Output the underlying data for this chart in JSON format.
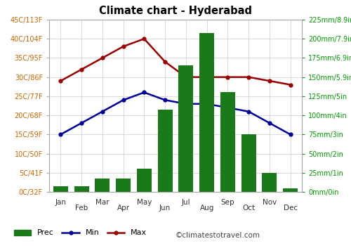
{
  "title": "Climate chart - Hyderabad",
  "months": [
    "Jan",
    "Feb",
    "Mar",
    "Apr",
    "May",
    "Jun",
    "Jul",
    "Aug",
    "Sep",
    "Oct",
    "Nov",
    "Dec"
  ],
  "prec_mm": [
    7,
    7,
    17,
    17,
    30,
    107,
    165,
    208,
    130,
    75,
    25,
    5
  ],
  "temp_min": [
    15,
    18,
    21,
    24,
    26,
    24,
    23,
    23,
    22,
    21,
    18,
    15
  ],
  "temp_max": [
    29,
    32,
    35,
    38,
    40,
    34,
    30,
    30,
    30,
    30,
    29,
    28
  ],
  "temp_ylim": [
    0,
    45
  ],
  "prec_ylim": [
    0,
    225
  ],
  "temp_yticks": [
    0,
    5,
    10,
    15,
    20,
    25,
    30,
    35,
    40,
    45
  ],
  "temp_ytick_labels": [
    "0C/32F",
    "5C/41F",
    "10C/50F",
    "15C/59F",
    "20C/68F",
    "25C/77F",
    "30C/86F",
    "35C/95F",
    "40C/104F",
    "45C/113F"
  ],
  "prec_yticks": [
    0,
    25,
    50,
    75,
    100,
    125,
    150,
    175,
    200,
    225
  ],
  "prec_ytick_labels": [
    "0mm/0in",
    "25mm/1in",
    "50mm/2in",
    "75mm/3in",
    "100mm/4in",
    "125mm/5in",
    "150mm/5.9in",
    "175mm/6.9in",
    "200mm/7.9in",
    "225mm/8.9in"
  ],
  "bar_color": "#1a7a1a",
  "min_color": "#000099",
  "max_color": "#990000",
  "grid_color": "#cccccc",
  "right_axis_color": "#009900",
  "title_color": "#000000",
  "watermark": "©climatestotravel.com",
  "watermark_color": "#444444",
  "background_color": "#ffffff",
  "left_tick_color": "#cc6600"
}
